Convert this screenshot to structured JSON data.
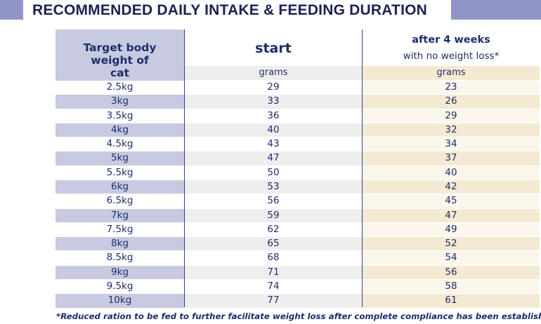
{
  "title": "RECOMMENDED DAILY INTAKE & FEEDING DURATION",
  "header": {
    "weight_col": "Target body weight of cat",
    "start_col": "start",
    "after_col": "after 4 weeks",
    "after_col_sub": "with no weight loss*",
    "unit_start": "grams",
    "unit_after": "grams"
  },
  "rows": [
    {
      "weight": "2.5kg",
      "start": "29",
      "after": "23"
    },
    {
      "weight": "3kg",
      "start": "33",
      "after": "26"
    },
    {
      "weight": "3.5kg",
      "start": "36",
      "after": "29"
    },
    {
      "weight": "4kg",
      "start": "40",
      "after": "32"
    },
    {
      "weight": "4.5kg",
      "start": "43",
      "after": "34"
    },
    {
      "weight": "5kg",
      "start": "47",
      "after": "37"
    },
    {
      "weight": "5.5kg",
      "start": "50",
      "after": "40"
    },
    {
      "weight": "6kg",
      "start": "53",
      "after": "42"
    },
    {
      "weight": "6.5kg",
      "start": "56",
      "after": "45"
    },
    {
      "weight": "7kg",
      "start": "59",
      "after": "47"
    },
    {
      "weight": "7.5kg",
      "start": "62",
      "after": "49"
    },
    {
      "weight": "8kg",
      "start": "65",
      "after": "52"
    },
    {
      "weight": "8.5kg",
      "start": "68",
      "after": "54"
    },
    {
      "weight": "9kg",
      "start": "71",
      "after": "56"
    },
    {
      "weight": "9.5kg",
      "start": "74",
      "after": "58"
    },
    {
      "weight": "10kg",
      "start": "77",
      "after": "61"
    }
  ],
  "footnote": "*Reduced ration to be fed to further facilitate weight loss after complete compliance has been established.",
  "colors": {
    "accent_bar": "#8f96c7",
    "text": "#1e2d6b",
    "weight_band": "#c7cae0",
    "after_band": "#f4ead2"
  }
}
